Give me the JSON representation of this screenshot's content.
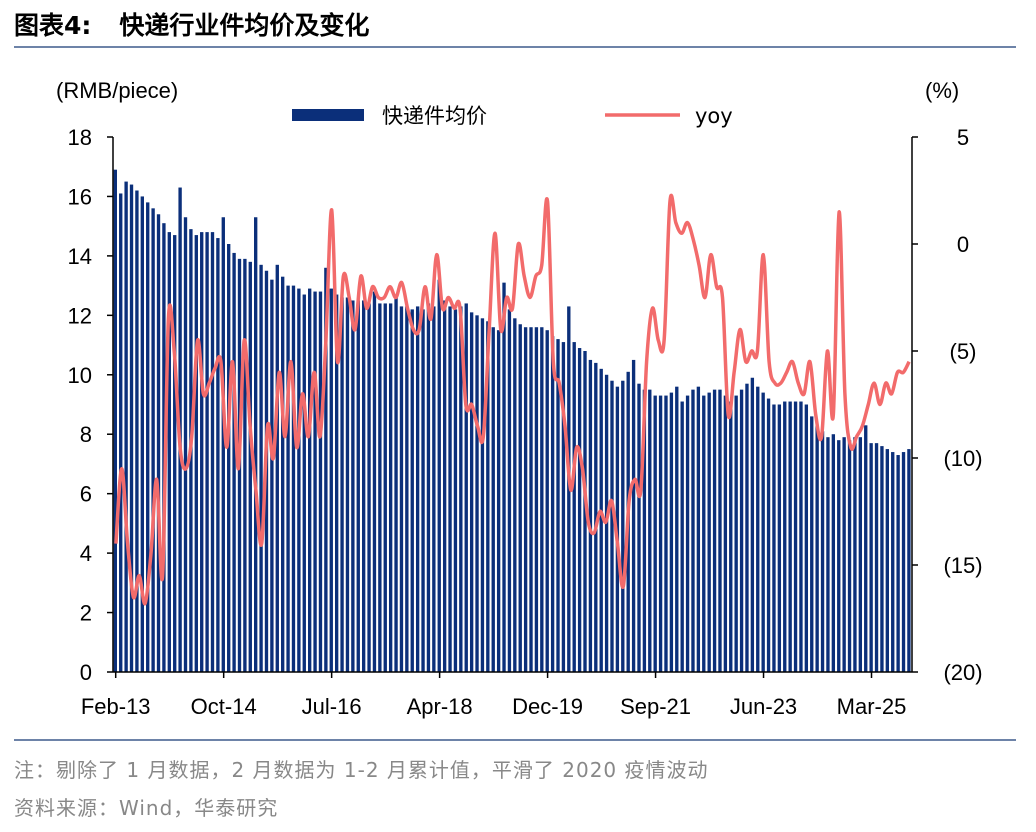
{
  "header": {
    "title_num": "图表4:",
    "title_text": "快递行业件均价及变化"
  },
  "footer": {
    "note": "注：剔除了 1 月数据，2 月数据为 1-2 月累计值，平滑了 2020 疫情波动",
    "source": "资料来源：Wind，华泰研究"
  },
  "colors": {
    "bar": "#0b2f7a",
    "line": "#f26b6b",
    "rule": "#6d83a8"
  },
  "chart_data": {
    "type": "bar+line",
    "left_axis_label": "(RMB/piece)",
    "right_axis_label": "(%)",
    "ylim_left": [
      0,
      18
    ],
    "left_ticks": [
      "0",
      "2",
      "4",
      "6",
      "8",
      "10",
      "12",
      "14",
      "16",
      "18"
    ],
    "ylim_right": [
      -20,
      5
    ],
    "right_ticks": [
      "(20)",
      "(15)",
      "(10)",
      "(5)",
      "0",
      "5"
    ],
    "x_tick_labels": [
      "Feb-13",
      "Oct-14",
      "Jul-16",
      "Apr-18",
      "Dec-19",
      "Sep-21",
      "Jun-23",
      "Mar-25"
    ],
    "series": [
      {
        "name": "快递件均价",
        "type": "bar",
        "axis": "left",
        "values": [
          16.9,
          16.1,
          16.5,
          16.4,
          16.2,
          16.0,
          15.8,
          15.6,
          15.4,
          15.1,
          14.8,
          14.7,
          16.3,
          15.3,
          14.9,
          14.7,
          14.8,
          14.8,
          14.8,
          14.6,
          15.3,
          14.4,
          14.1,
          13.9,
          13.9,
          13.8,
          15.3,
          13.7,
          13.5,
          13.2,
          13.7,
          13.3,
          13.0,
          13.0,
          12.9,
          12.7,
          12.9,
          12.8,
          12.8,
          13.6,
          12.9,
          12.7,
          12.6,
          12.6,
          12.5,
          12.5,
          12.5,
          12.4,
          12.8,
          12.4,
          12.4,
          12.4,
          12.6,
          12.3,
          12.3,
          12.2,
          12.3,
          12.2,
          12.4,
          12.3,
          13.2,
          12.5,
          12.3,
          12.2,
          12.3,
          12.4,
          12.1,
          12.0,
          11.9,
          11.8,
          11.6,
          11.5,
          13.1,
          12.2,
          11.9,
          11.7,
          11.6,
          11.6,
          11.6,
          11.6,
          11.5,
          11.3,
          11.2,
          11.1,
          12.3,
          11.1,
          10.9,
          10.8,
          10.5,
          10.4,
          10.2,
          10.0,
          9.8,
          9.6,
          9.8,
          10.1,
          10.5,
          9.7,
          9.5,
          9.5,
          9.3,
          9.3,
          9.3,
          9.4,
          9.6,
          9.1,
          9.3,
          9.5,
          9.6,
          9.3,
          9.4,
          9.5,
          9.5,
          9.3,
          9.1,
          9.3,
          9.5,
          9.7,
          9.9,
          9.6,
          9.4,
          9.2,
          9.0,
          9.0,
          9.1,
          9.1,
          9.1,
          9.1,
          9.0,
          8.6,
          8.3,
          8.1,
          7.9,
          8.0,
          7.8,
          7.9,
          7.8,
          7.9,
          7.9,
          8.3,
          7.7,
          7.7,
          7.6,
          7.5,
          7.4,
          7.3,
          7.4,
          7.5
        ]
      },
      {
        "name": "yoy",
        "type": "line",
        "axis": "right",
        "values": [
          -14.0,
          -10.5,
          -14.0,
          -16.5,
          -15.5,
          -16.8,
          -14.5,
          -11.0,
          -15.5,
          -3.5,
          -5.0,
          -9.5,
          -10.5,
          -9.0,
          -4.5,
          -7.0,
          -6.5,
          -5.8,
          -5.5,
          -9.5,
          -5.5,
          -10.5,
          -4.5,
          -8.5,
          -11.5,
          -14.0,
          -8.5,
          -10.0,
          -6.0,
          -9.0,
          -5.5,
          -9.5,
          -7.0,
          -9.0,
          -6.0,
          -9.0,
          -4.5,
          1.6,
          -5.5,
          -1.5,
          -2.5,
          -4.0,
          -1.5,
          -3.0,
          -2.0,
          -2.5,
          -2.5,
          -2.0,
          -2.5,
          -1.8,
          -3.0,
          -4.0,
          -4.0,
          -2.0,
          -3.5,
          -0.5,
          -3.0,
          -2.5,
          -3.0,
          -3.0,
          -7.5,
          -7.5,
          -8.5,
          -9.0,
          -4.0,
          0.5,
          -4.0,
          -2.5,
          -3.0,
          0.0,
          -1.5,
          -2.5,
          -1.5,
          -1.0,
          2.0,
          -5.5,
          -6.5,
          -8.5,
          -11.5,
          -9.5,
          -10.5,
          -13.0,
          -13.5,
          -12.5,
          -13.0,
          -12.0,
          -14.0,
          -16.0,
          -12.0,
          -11.0,
          -11.5,
          -5.5,
          -3.0,
          -4.5,
          -4.5,
          2.0,
          1.0,
          0.5,
          1.0,
          0.2,
          -1.0,
          -2.5,
          -0.5,
          -2.0,
          -2.5,
          -8.0,
          -6.0,
          -4.0,
          -5.5,
          -5.0,
          -5.0,
          -0.5,
          -5.5,
          -6.5,
          -6.5,
          -6.0,
          -5.5,
          -6.5,
          -7.0,
          -5.5,
          -8.0,
          -9.0,
          -5.0,
          -8.0,
          1.5,
          -7.0,
          -9.5,
          -9.0,
          -8.5,
          -7.5,
          -6.5,
          -7.5,
          -6.5,
          -7.0,
          -6.0,
          -6.0,
          -5.5
        ]
      }
    ]
  }
}
